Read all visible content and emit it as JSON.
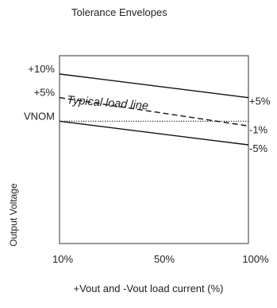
{
  "chart_data": {
    "type": "line",
    "title": "Tolerance Envelopes",
    "xlabel": "+Vout and -Vout load current (%)",
    "ylabel": "Output Voltage",
    "x_ticks": [
      "10%",
      "50%",
      "100%"
    ],
    "x": [
      10,
      100
    ],
    "xlim": [
      10,
      100
    ],
    "ylim": [
      -14,
      11
    ],
    "y_ticks_left": [
      {
        "label": "+10%",
        "value": 10
      },
      {
        "label": "+5%",
        "value": 5
      },
      {
        "label": "VNOM",
        "value": 0
      }
    ],
    "y_ticks_right": [
      {
        "label": "+5%",
        "value": 5
      },
      {
        "label": "-1%",
        "value": -1
      },
      {
        "label": "-5%",
        "value": -5
      }
    ],
    "annotation": "Typical load line",
    "series": [
      {
        "id": "upper",
        "values": [
          10,
          5
        ],
        "style": "solid"
      },
      {
        "id": "typical",
        "values": [
          5,
          -1
        ],
        "style": "dashed"
      },
      {
        "id": "nominal",
        "values": [
          0,
          0
        ],
        "style": "dotted"
      },
      {
        "id": "lower",
        "values": [
          0,
          -5
        ],
        "style": "solid"
      }
    ],
    "grid": false,
    "colors": {
      "line": "#111111",
      "frame": "#333333",
      "text": "#222222"
    }
  }
}
